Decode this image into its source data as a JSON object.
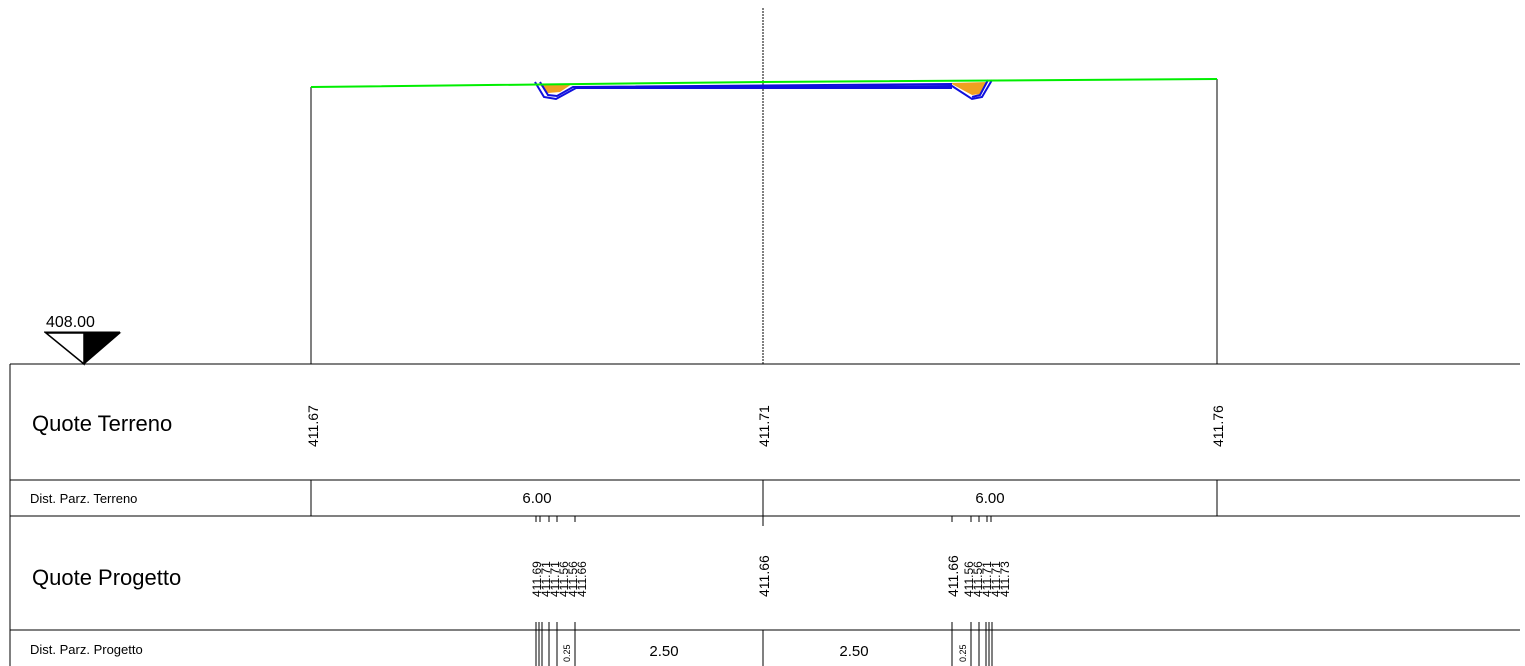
{
  "reference": {
    "datum_label": "408.00"
  },
  "rows": {
    "quote_terreno": "Quote Terreno",
    "dist_parz_terreno": "Dist. Parz. Terreno",
    "quote_progetto": "Quote Progetto",
    "dist_parz_progetto": "Dist. Parz. Progetto"
  },
  "terrain": {
    "elevations": [
      "411.67",
      "411.71",
      "411.76"
    ],
    "distances": [
      "6.00",
      "6.00"
    ]
  },
  "project": {
    "elevations_left": [
      "411.69",
      "411.71",
      "411.71",
      "411.56",
      "411.56",
      "411.66"
    ],
    "elevation_center": "411.66",
    "elevations_right": [
      "411.66",
      "411.56",
      "411.56",
      "411.71",
      "411.71",
      "411.73"
    ],
    "distances_center": [
      "2.50",
      "2.50"
    ],
    "distances_small_left": [
      "0.25"
    ],
    "distances_small_right": [
      "0.25"
    ]
  },
  "colors": {
    "terrain_line": "#00ee00",
    "project_line": "#1010dd",
    "fill": "#f0a020",
    "frame": "#000000"
  }
}
